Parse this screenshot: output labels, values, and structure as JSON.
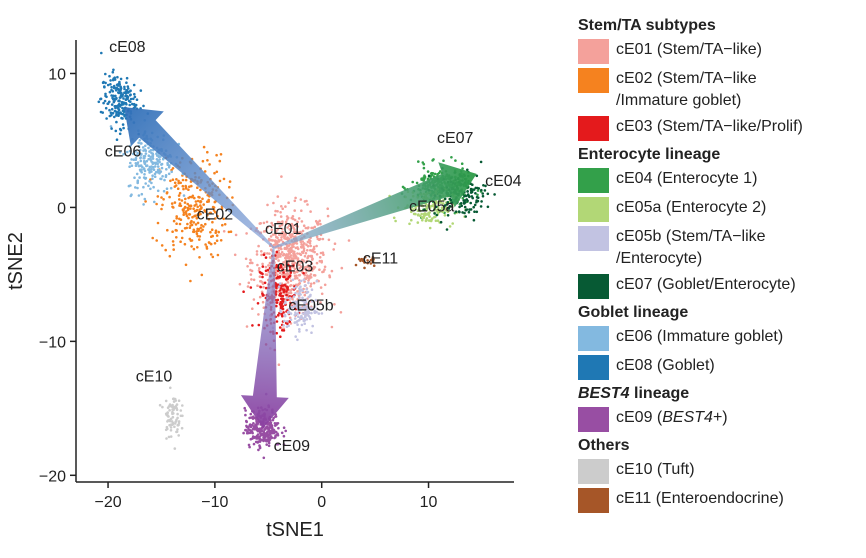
{
  "chart_data": {
    "type": "scatter",
    "xlabel": "tSNE1",
    "ylabel": "tSNE2",
    "xlim": [
      -23,
      18
    ],
    "ylim": [
      -20.5,
      12.5
    ],
    "xticks": [
      -20,
      -10,
      0,
      10
    ],
    "yticks": [
      10,
      0,
      -10,
      -20
    ],
    "tick_labels": {
      "x": [
        "−20",
        "−10",
        "0",
        "10"
      ],
      "y": [
        "10",
        "0",
        "−10",
        "−20"
      ]
    },
    "grid": false,
    "legend_position": "right",
    "clusters": [
      {
        "id": "cE01",
        "color": "#f4a19b",
        "center": [
          -3,
          -4
        ],
        "spread": [
          3.2,
          3.5
        ],
        "points": 650,
        "label_pos": [
          -3.6,
          -2.0
        ]
      },
      {
        "id": "cE02",
        "color": "#f5821f",
        "center": [
          -12,
          0
        ],
        "spread": [
          2.8,
          3.5
        ],
        "points": 280,
        "label_pos": [
          -10.0,
          -0.9
        ]
      },
      {
        "id": "cE03",
        "color": "#e41a1c",
        "center": [
          -4,
          -6.5
        ],
        "spread": [
          1.6,
          2.4
        ],
        "points": 200,
        "label_pos": [
          -2.5,
          -4.8
        ]
      },
      {
        "id": "cE04",
        "color": "#33a04a",
        "center": [
          11,
          1.5
        ],
        "spread": [
          2.4,
          1.4
        ],
        "points": 260,
        "label_pos": [
          17.0,
          1.6
        ]
      },
      {
        "id": "cE05a",
        "color": "#b2d776",
        "center": [
          10,
          0
        ],
        "spread": [
          2.2,
          1.2
        ],
        "points": 150,
        "label_pos": [
          10.3,
          -0.3
        ]
      },
      {
        "id": "cE05b",
        "color": "#c2c3e2",
        "center": [
          -2,
          -7.5
        ],
        "spread": [
          1.4,
          1.8
        ],
        "points": 140,
        "label_pos": [
          -1.0,
          -7.7
        ]
      },
      {
        "id": "cE06",
        "color": "#83b9e0",
        "center": [
          -16,
          3.5
        ],
        "spread": [
          2.0,
          2.2
        ],
        "points": 220,
        "label_pos": [
          -18.6,
          3.8
        ]
      },
      {
        "id": "cE07",
        "color": "#075a34",
        "center": [
          13,
          1
        ],
        "spread": [
          2.2,
          1.6
        ],
        "points": 160,
        "label_pos": [
          12.5,
          4.8
        ]
      },
      {
        "id": "cE08",
        "color": "#1f78b4",
        "center": [
          -19,
          8
        ],
        "spread": [
          1.5,
          1.8
        ],
        "points": 200,
        "label_pos": [
          -18.2,
          11.6
        ]
      },
      {
        "id": "cE09",
        "color": "#984ea3",
        "center": [
          -5.5,
          -16.5
        ],
        "spread": [
          1.5,
          1.3
        ],
        "points": 260,
        "label_pos": [
          -2.8,
          -18.2
        ]
      },
      {
        "id": "cE10",
        "color": "#cccccc",
        "center": [
          -14,
          -15.5
        ],
        "spread": [
          0.7,
          1.5
        ],
        "points": 80,
        "label_pos": [
          -15.7,
          -13.0
        ]
      },
      {
        "id": "cE11",
        "color": "#a65628",
        "center": [
          4,
          -4
        ],
        "spread": [
          1.0,
          0.5
        ],
        "points": 20,
        "label_pos": [
          5.5,
          -4.2
        ]
      }
    ],
    "trajectory": {
      "origin": [
        -4.5,
        -3
      ],
      "color_start": "#8aa4d8",
      "arrows": [
        {
          "to": [
            -18.5,
            7.5
          ],
          "color": "#2f6fb8"
        },
        {
          "to": [
            14.5,
            2.5
          ],
          "color": "#2b9b45"
        },
        {
          "to": [
            -5.5,
            -16.5
          ],
          "color": "#8b3fa0"
        }
      ]
    }
  },
  "legend": {
    "groups": [
      {
        "title": "Stem/TA subtypes",
        "italic_prefix": "",
        "items": [
          {
            "label": "cE01 (Stem/TA−like)",
            "color": "#f4a19b"
          },
          {
            "label": "cE02 (Stem/TA−like\n/Immature goblet)",
            "color": "#f5821f"
          },
          {
            "label": "cE03 (Stem/TA−like/Prolif)",
            "color": "#e41a1c"
          }
        ]
      },
      {
        "title": "Enterocyte lineage",
        "italic_prefix": "",
        "items": [
          {
            "label": "cE04 (Enterocyte 1)",
            "color": "#33a04a"
          },
          {
            "label": "cE05a (Enterocyte 2)",
            "color": "#b2d776"
          },
          {
            "label": "cE05b (Stem/TA−like\n/Enterocyte)",
            "color": "#c2c3e2"
          },
          {
            "label": "cE07 (Goblet/Enterocyte)",
            "color": "#075a34"
          }
        ]
      },
      {
        "title": "Goblet lineage",
        "italic_prefix": "",
        "items": [
          {
            "label": "cE06 (Immature goblet)",
            "color": "#83b9e0"
          },
          {
            "label": "cE08 (Goblet)",
            "color": "#1f78b4"
          }
        ]
      },
      {
        "title": " lineage",
        "italic_prefix": "BEST4",
        "items": [
          {
            "label": "cE09 (BEST4+)",
            "color": "#984ea3",
            "italic_part": "BEST4"
          }
        ]
      },
      {
        "title": "Others",
        "italic_prefix": "",
        "items": [
          {
            "label": "cE10 (Tuft)",
            "color": "#cccccc"
          },
          {
            "label": "cE11 (Enteroendocrine)",
            "color": "#a65628"
          }
        ]
      }
    ]
  }
}
